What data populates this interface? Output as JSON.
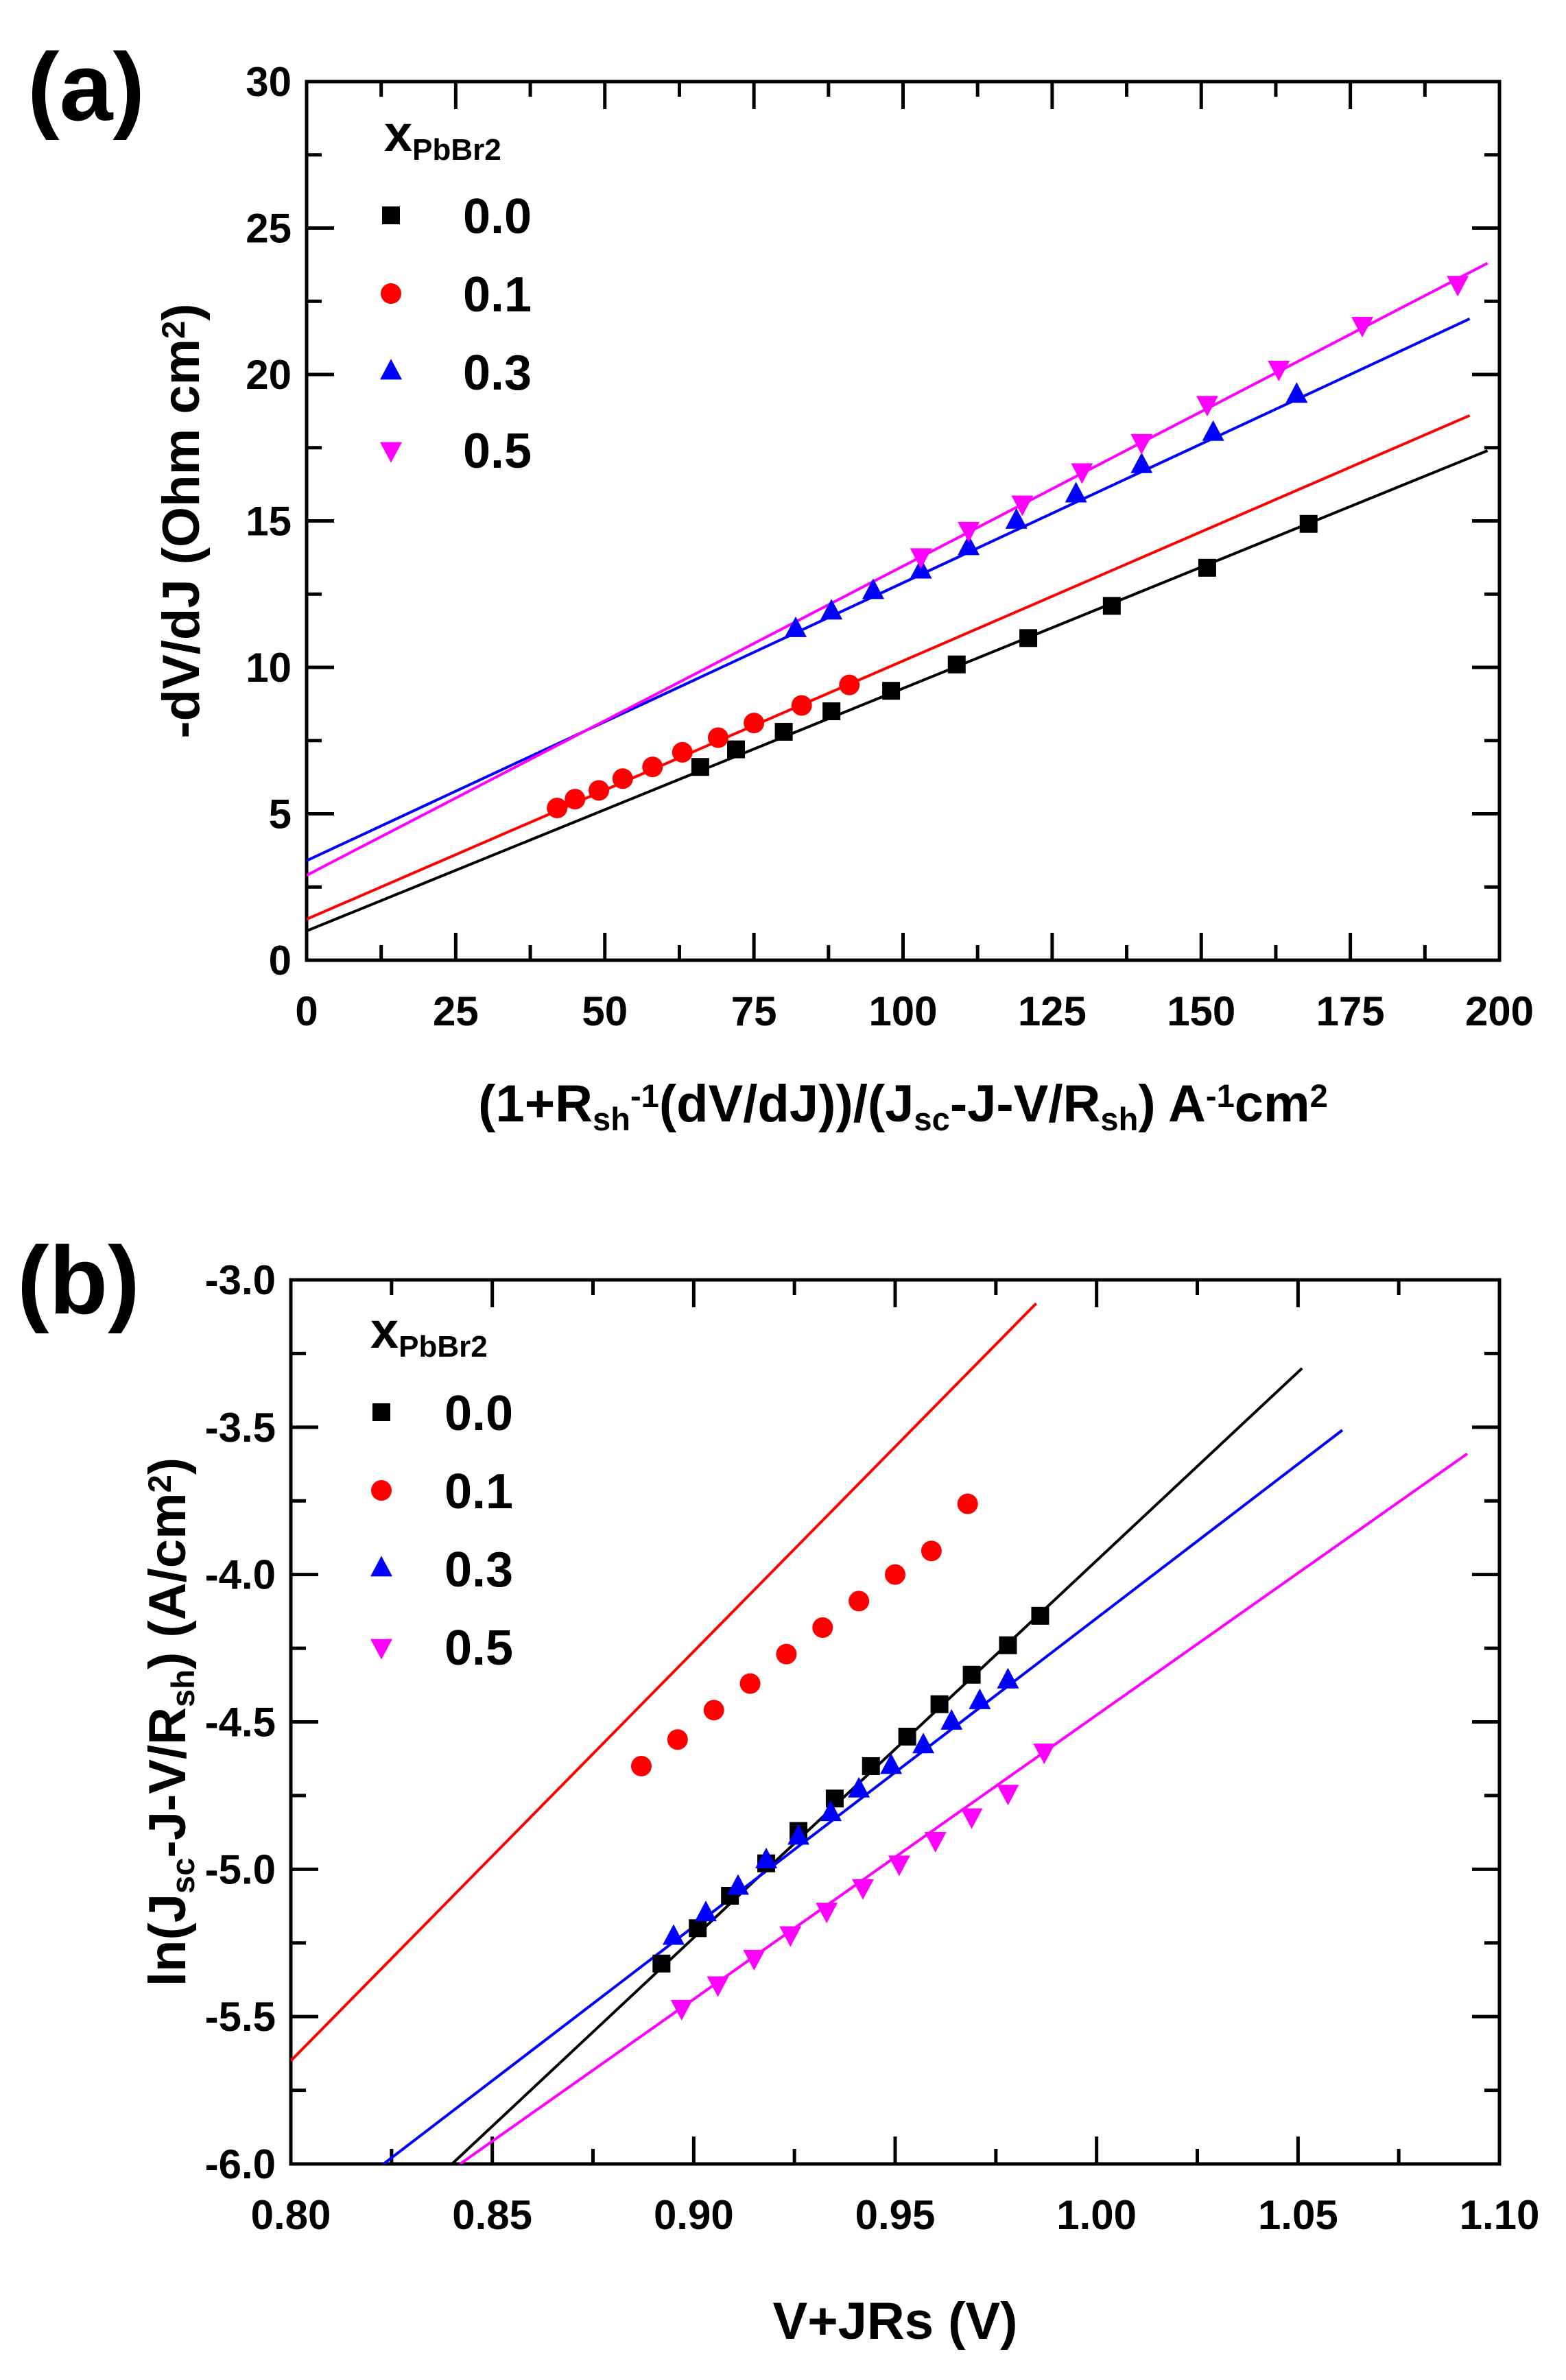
{
  "colors": {
    "x0.0": "#000000",
    "x0.1": "#ff0000",
    "x0.3": "#0000ff",
    "x0.5": "#ff00ff",
    "axis": "#000000",
    "background": "#ffffff"
  },
  "chart_data": [
    {
      "panel_label": "(a)",
      "type": "scatter",
      "title": "",
      "xlabel": {
        "segments": [
          {
            "t": "(1+R",
            "s": "n"
          },
          {
            "t": "sh",
            "s": "sub"
          },
          {
            "t": "-1",
            "s": "sup"
          },
          {
            "t": "(dV/dJ))/(J",
            "s": "n"
          },
          {
            "t": "sc",
            "s": "sub"
          },
          {
            "t": "-J-V/R",
            "s": "n"
          },
          {
            "t": "sh",
            "s": "sub"
          },
          {
            "t": ") A",
            "s": "n"
          },
          {
            "t": "-1",
            "s": "sup"
          },
          {
            "t": "cm",
            "s": "n"
          },
          {
            "t": "2",
            "s": "sup"
          }
        ]
      },
      "ylabel": {
        "segments": [
          {
            "t": "-dV/dJ (Ohm cm",
            "s": "n"
          },
          {
            "t": "2",
            "s": "sup"
          },
          {
            "t": ")",
            "s": "n"
          }
        ]
      },
      "xlim": [
        0,
        200
      ],
      "ylim": [
        0,
        30
      ],
      "xticks": [
        0,
        25,
        50,
        75,
        100,
        125,
        150,
        175,
        200
      ],
      "xtick_labels": [
        "0",
        "25",
        "50",
        "75",
        "100",
        "125",
        "150",
        "175",
        "200"
      ],
      "yticks": [
        0,
        5,
        10,
        15,
        20,
        25,
        30
      ],
      "ytick_labels": [
        "0",
        "5",
        "10",
        "15",
        "20",
        "25",
        "30"
      ],
      "legend": {
        "title_main": "x",
        "title_sub": "PbBr2",
        "position": "top-left"
      },
      "series": [
        {
          "name": "0.0",
          "color_key": "x0.0",
          "marker": "square",
          "x": [
            66,
            72,
            80,
            88,
            98,
            109,
            121,
            135,
            151,
            168
          ],
          "y": [
            6.6,
            7.2,
            7.8,
            8.5,
            9.2,
            10.1,
            11.0,
            12.1,
            13.4,
            14.9
          ],
          "fit": {
            "x": [
              0,
              198
            ],
            "y": [
              1.0,
              17.4
            ]
          }
        },
        {
          "name": "0.1",
          "color_key": "x0.1",
          "marker": "circle",
          "x": [
            42,
            45,
            49,
            53,
            58,
            63,
            69,
            75,
            83,
            91
          ],
          "y": [
            5.2,
            5.5,
            5.8,
            6.2,
            6.6,
            7.1,
            7.6,
            8.1,
            8.7,
            9.4
          ],
          "fit": {
            "x": [
              0,
              195
            ],
            "y": [
              1.4,
              18.6
            ]
          }
        },
        {
          "name": "0.3",
          "color_key": "x0.3",
          "marker": "triangle-up",
          "x": [
            82,
            88,
            95,
            103,
            111,
            119,
            129,
            140,
            152,
            166
          ],
          "y": [
            11.3,
            11.9,
            12.6,
            13.3,
            14.1,
            15.0,
            15.9,
            16.9,
            18.0,
            19.3
          ],
          "fit": {
            "x": [
              0,
              195
            ],
            "y": [
              3.4,
              21.9
            ]
          }
        },
        {
          "name": "0.5",
          "color_key": "x0.5",
          "marker": "triangle-down",
          "x": [
            103,
            111,
            120,
            130,
            140,
            151,
            163,
            177,
            193
          ],
          "y": [
            13.8,
            14.7,
            15.6,
            16.7,
            17.7,
            19.0,
            20.2,
            21.7,
            23.1
          ],
          "fit": {
            "x": [
              0,
              198
            ],
            "y": [
              2.9,
              23.8
            ]
          }
        }
      ]
    },
    {
      "panel_label": "(b)",
      "type": "scatter",
      "title": "",
      "xlabel": {
        "segments": [
          {
            "t": "V+JRs (V)",
            "s": "n"
          }
        ]
      },
      "ylabel": {
        "segments": [
          {
            "t": "ln(J",
            "s": "n"
          },
          {
            "t": "sc",
            "s": "sub"
          },
          {
            "t": "-J-V/R",
            "s": "n"
          },
          {
            "t": "sh",
            "s": "sub"
          },
          {
            "t": ") (A/cm",
            "s": "n"
          },
          {
            "t": "2",
            "s": "sup"
          },
          {
            "t": ")",
            "s": "n"
          }
        ]
      },
      "xlim": [
        0.8,
        1.1
      ],
      "ylim": [
        -6.0,
        -3.0
      ],
      "xticks": [
        0.8,
        0.85,
        0.9,
        0.95,
        1.0,
        1.05,
        1.1
      ],
      "xtick_labels": [
        "0.80",
        "0.85",
        "0.90",
        "0.95",
        "1.00",
        "1.05",
        "1.10"
      ],
      "yticks": [
        -6.0,
        -5.5,
        -5.0,
        -4.5,
        -4.0,
        -3.5,
        -3.0
      ],
      "ytick_labels": [
        "-6.0",
        "-5.5",
        "-5.0",
        "-4.5",
        "-4.0",
        "-3.5",
        "-3.0"
      ],
      "legend": {
        "title_main": "x",
        "title_sub": "PbBr2",
        "position": "top-left"
      },
      "series": [
        {
          "name": "0.0",
          "color_key": "x0.0",
          "marker": "square",
          "x": [
            0.892,
            0.901,
            0.909,
            0.918,
            0.926,
            0.935,
            0.944,
            0.953,
            0.961,
            0.969,
            0.978,
            0.986
          ],
          "y": [
            -5.32,
            -5.2,
            -5.09,
            -4.98,
            -4.87,
            -4.76,
            -4.65,
            -4.55,
            -4.44,
            -4.34,
            -4.24,
            -4.14
          ],
          "fit": {
            "x": [
              0.84,
              1.051
            ],
            "y": [
              -6.0,
              -3.3
            ]
          }
        },
        {
          "name": "0.1",
          "color_key": "x0.1",
          "marker": "circle",
          "x": [
            0.887,
            0.896,
            0.905,
            0.914,
            0.923,
            0.932,
            0.941,
            0.95,
            0.959,
            0.968
          ],
          "y": [
            -4.65,
            -4.56,
            -4.46,
            -4.37,
            -4.27,
            -4.18,
            -4.09,
            -4.0,
            -3.92,
            -3.76
          ],
          "fit": {
            "x": [
              0.8,
              0.985
            ],
            "y": [
              -5.65,
              -3.08
            ]
          }
        },
        {
          "name": "0.3",
          "color_key": "x0.3",
          "marker": "triangle-up",
          "x": [
            0.895,
            0.903,
            0.911,
            0.918,
            0.926,
            0.934,
            0.941,
            0.949,
            0.957,
            0.964,
            0.971,
            0.978
          ],
          "y": [
            -5.23,
            -5.15,
            -5.06,
            -4.97,
            -4.89,
            -4.81,
            -4.73,
            -4.65,
            -4.58,
            -4.5,
            -4.43,
            -4.36
          ],
          "fit": {
            "x": [
              0.823,
              1.061
            ],
            "y": [
              -6.0,
              -3.51
            ]
          }
        },
        {
          "name": "0.5",
          "color_key": "x0.5",
          "marker": "triangle-down",
          "x": [
            0.897,
            0.906,
            0.915,
            0.924,
            0.933,
            0.942,
            0.951,
            0.96,
            0.969,
            0.978,
            0.987
          ],
          "y": [
            -5.47,
            -5.39,
            -5.3,
            -5.22,
            -5.14,
            -5.06,
            -4.98,
            -4.9,
            -4.82,
            -4.74,
            -4.6
          ],
          "fit": {
            "x": [
              0.842,
              1.092
            ],
            "y": [
              -6.0,
              -3.59
            ]
          }
        }
      ]
    }
  ]
}
